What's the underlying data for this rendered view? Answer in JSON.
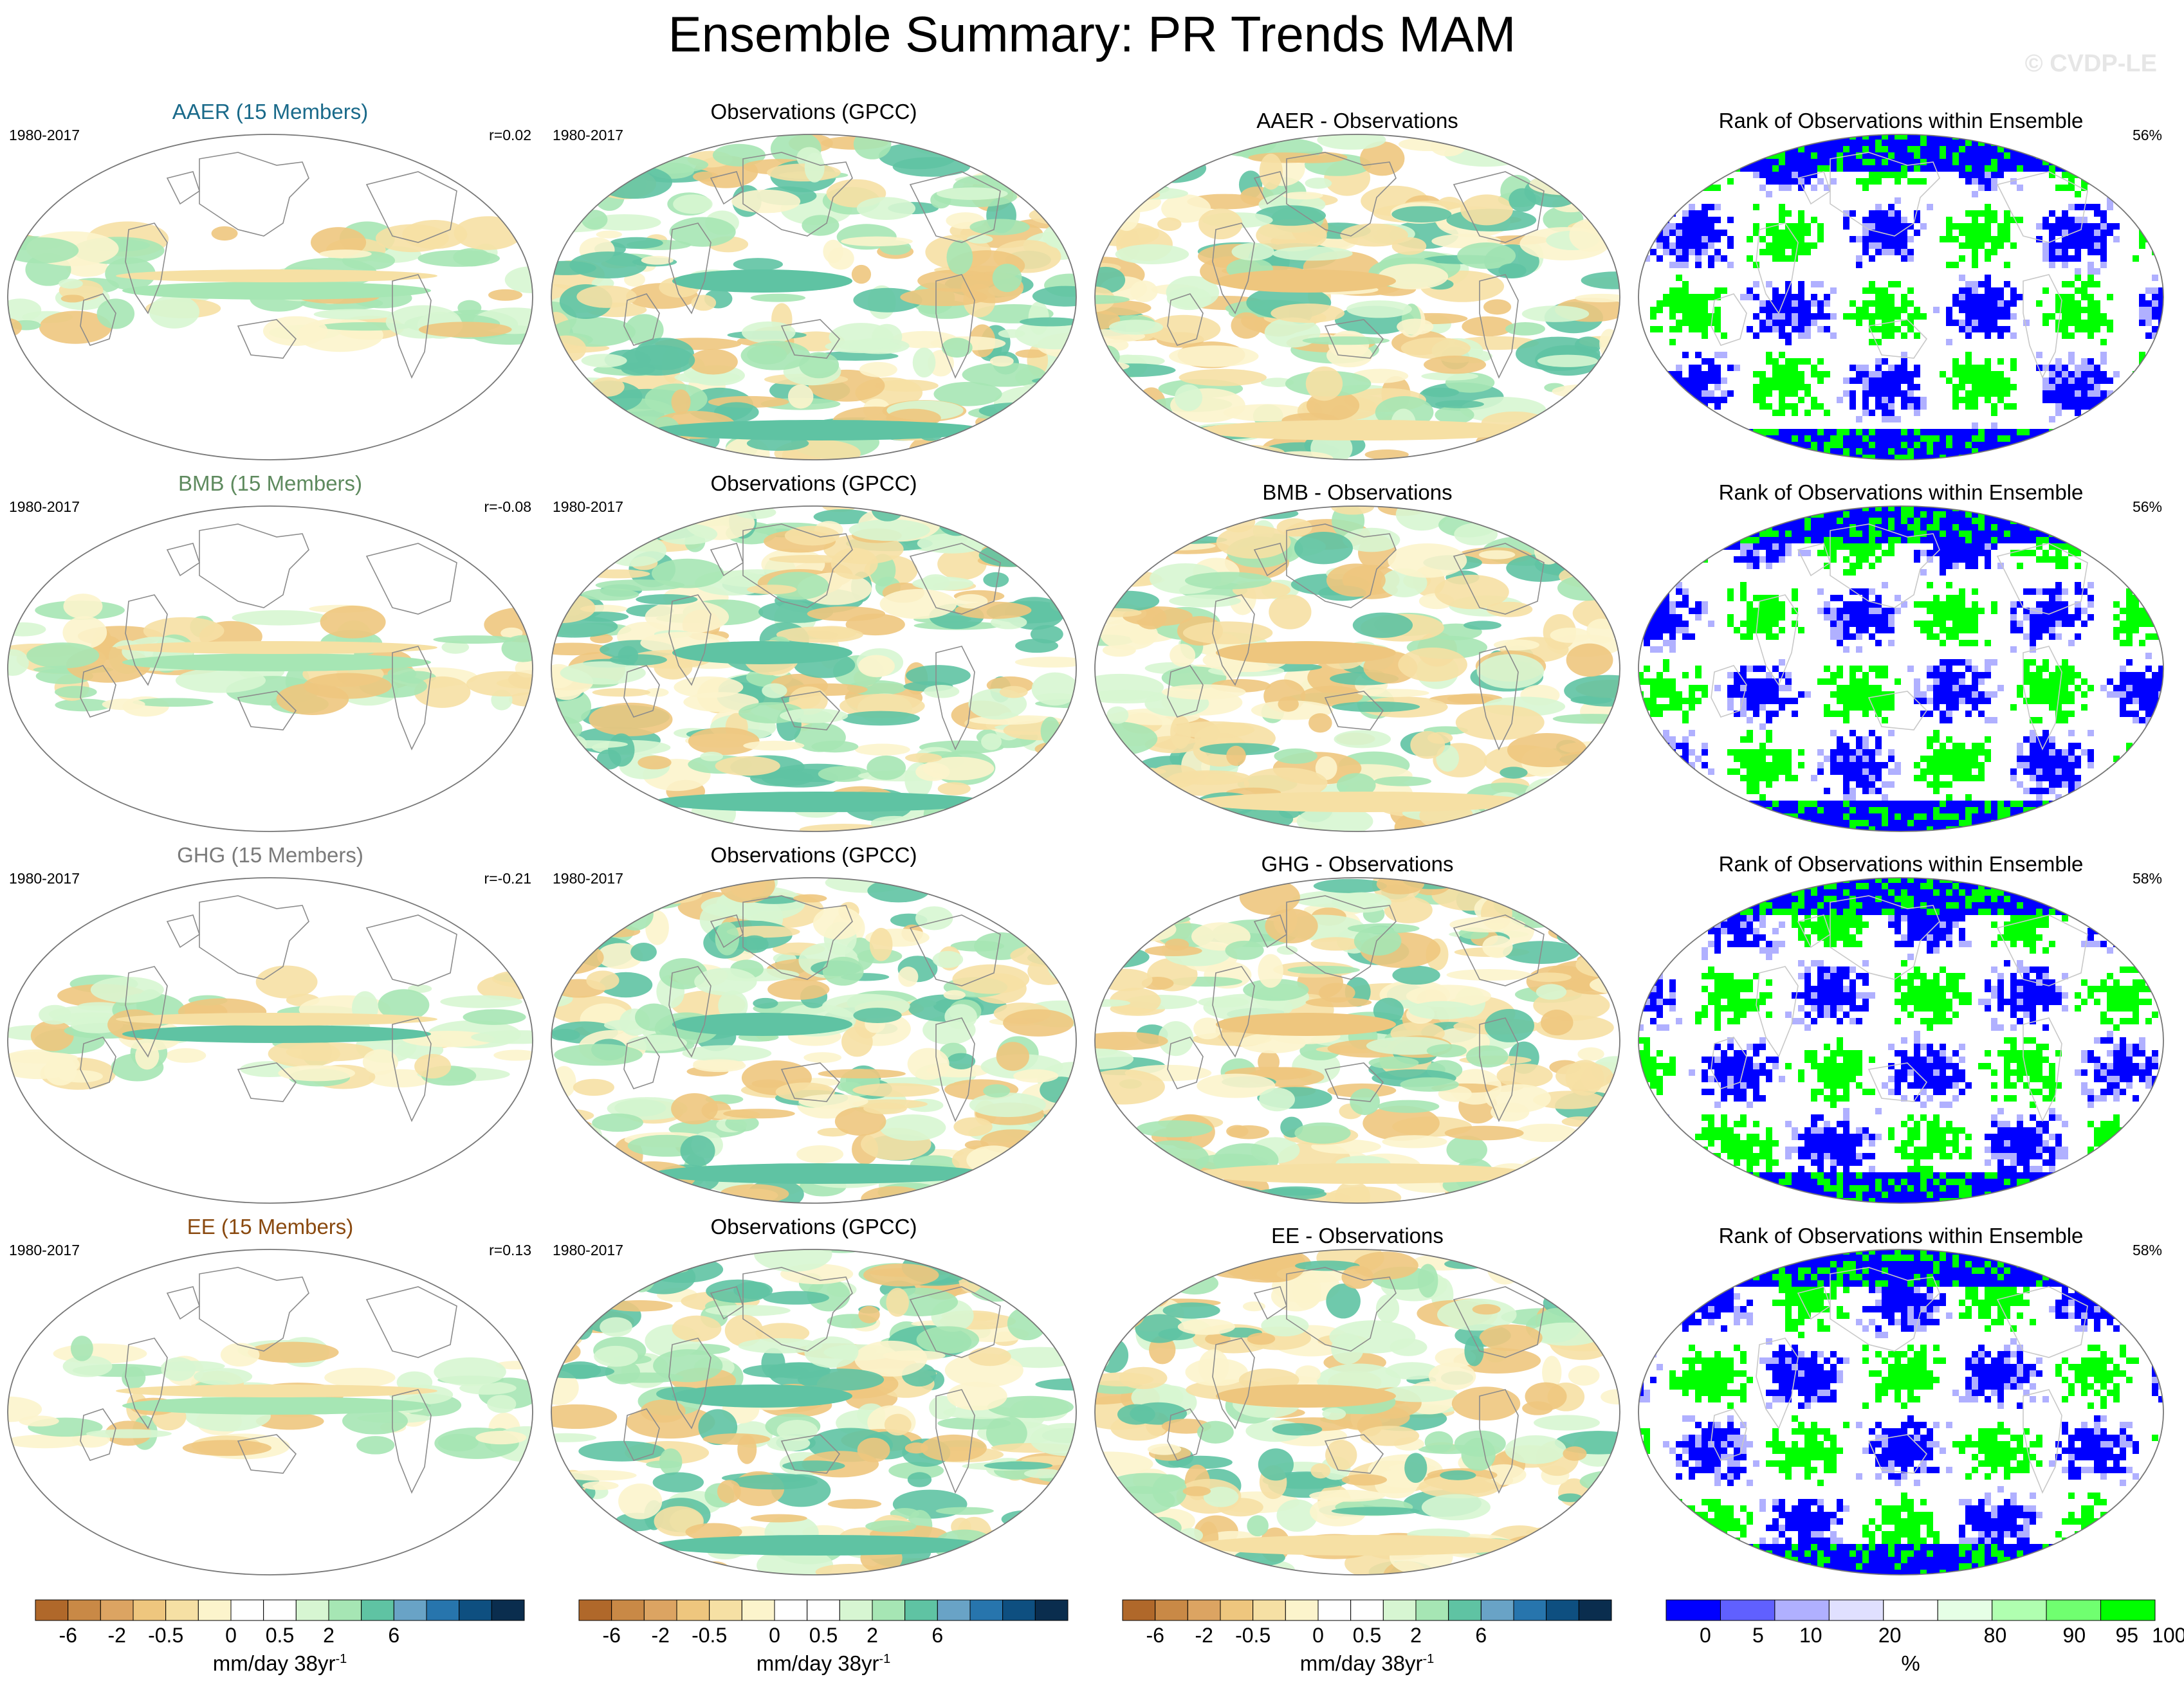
{
  "title": "Ensemble Summary: PR Trends MAM",
  "watermark": "© CVDP-LE",
  "rows": [
    {
      "ensemble": {
        "title": "AAER (15 Members)",
        "title_color": "#1a6a8a",
        "period": "1980-2017",
        "corr": "r=0.02"
      },
      "obs": {
        "title": "Observations (GPCC)",
        "period": "1980-2017"
      },
      "diff": {
        "title": "AAER - Observations"
      },
      "rank": {
        "title": "Rank of Observations within Ensemble",
        "pct": "56%"
      }
    },
    {
      "ensemble": {
        "title": "BMB (15 Members)",
        "title_color": "#5e8a5e",
        "period": "1980-2017",
        "corr": "r=-0.08"
      },
      "obs": {
        "title": "Observations (GPCC)",
        "period": "1980-2017"
      },
      "diff": {
        "title": "BMB - Observations"
      },
      "rank": {
        "title": "Rank of Observations within Ensemble",
        "pct": "56%"
      }
    },
    {
      "ensemble": {
        "title": "GHG (15 Members)",
        "title_color": "#7a7a7a",
        "period": "1980-2017",
        "corr": "r=-0.21"
      },
      "obs": {
        "title": "Observations (GPCC)",
        "period": "1980-2017"
      },
      "diff": {
        "title": "GHG - Observations"
      },
      "rank": {
        "title": "Rank of Observations within Ensemble",
        "pct": "58%"
      }
    },
    {
      "ensemble": {
        "title": "EE (15 Members)",
        "title_color": "#8a4a10",
        "period": "1980-2017",
        "corr": "r=0.13"
      },
      "obs": {
        "title": "Observations (GPCC)",
        "period": "1980-2017"
      },
      "diff": {
        "title": "EE - Observations"
      },
      "rank": {
        "title": "Rank of Observations within Ensemble",
        "pct": "58%"
      }
    }
  ],
  "colorbars": {
    "trend": {
      "colors": [
        "#b0682a",
        "#c98946",
        "#dca462",
        "#eec67e",
        "#f6e0a4",
        "#fcf4cc",
        "#ffffff",
        "#ffffff",
        "#d7f6d2",
        "#a6e6b4",
        "#5fc3a3",
        "#69a3c6",
        "#2775ad",
        "#0e4f80",
        "#0a2d4e"
      ],
      "ticks": [
        "-6",
        "-2",
        "-0.5",
        "0",
        "0.5",
        "2",
        "6"
      ],
      "units": "mm/day 38yr",
      "units_sup": "-1"
    },
    "rank": {
      "colors": [
        "#0000ff",
        "#6060ff",
        "#b0b0ff",
        "#e0e0ff",
        "#ffffff",
        "#e6ffe6",
        "#b0ffb0",
        "#70ff70",
        "#00ff00"
      ],
      "ticks": [
        "0",
        "5",
        "10",
        "20",
        "80",
        "90",
        "95",
        "100"
      ],
      "units": "%"
    }
  },
  "chart_data": [
    {
      "type": "heatmap",
      "title": "AAER (15 Members)",
      "period": "1980-2017",
      "pattern_correlation": 0.02,
      "units": "mm/day 38yr-1"
    },
    {
      "type": "heatmap",
      "title": "Observations (GPCC)",
      "period": "1980-2017",
      "units": "mm/day 38yr-1"
    },
    {
      "type": "heatmap",
      "title": "AAER - Observations",
      "units": "mm/day 38yr-1"
    },
    {
      "type": "heatmap",
      "title": "Rank of Observations within Ensemble",
      "units": "%",
      "area_pct": 56
    },
    {
      "type": "heatmap",
      "title": "BMB (15 Members)",
      "period": "1980-2017",
      "pattern_correlation": -0.08,
      "units": "mm/day 38yr-1"
    },
    {
      "type": "heatmap",
      "title": "Observations (GPCC)",
      "period": "1980-2017",
      "units": "mm/day 38yr-1"
    },
    {
      "type": "heatmap",
      "title": "BMB - Observations",
      "units": "mm/day 38yr-1"
    },
    {
      "type": "heatmap",
      "title": "Rank of Observations within Ensemble",
      "units": "%",
      "area_pct": 56
    },
    {
      "type": "heatmap",
      "title": "GHG (15 Members)",
      "period": "1980-2017",
      "pattern_correlation": -0.21,
      "units": "mm/day 38yr-1"
    },
    {
      "type": "heatmap",
      "title": "Observations (GPCC)",
      "period": "1980-2017",
      "units": "mm/day 38yr-1"
    },
    {
      "type": "heatmap",
      "title": "GHG - Observations",
      "units": "mm/day 38yr-1"
    },
    {
      "type": "heatmap",
      "title": "Rank of Observations within Ensemble",
      "units": "%",
      "area_pct": 58
    },
    {
      "type": "heatmap",
      "title": "EE (15 Members)",
      "period": "1980-2017",
      "pattern_correlation": 0.13,
      "units": "mm/day 38yr-1"
    },
    {
      "type": "heatmap",
      "title": "Observations (GPCC)",
      "period": "1980-2017",
      "units": "mm/day 38yr-1"
    },
    {
      "type": "heatmap",
      "title": "EE - Observations",
      "units": "mm/day 38yr-1"
    },
    {
      "type": "heatmap",
      "title": "Rank of Observations within Ensemble",
      "units": "%",
      "area_pct": 58
    }
  ]
}
